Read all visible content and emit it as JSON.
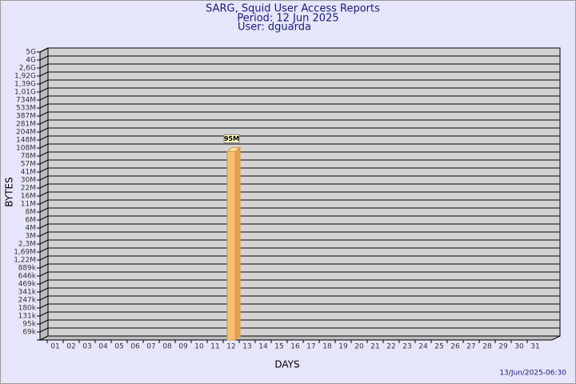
{
  "chart_data": {
    "type": "bar",
    "title": "SARG, Squid User Access Reports",
    "subtitle": "Period: 12 Jun 2025",
    "user": "User: dguarda",
    "x_label": "DAYS",
    "y_label": "BYTES",
    "footer": "13/Jun/2025-06:30",
    "categories": [
      "01",
      "02",
      "03",
      "04",
      "05",
      "06",
      "07",
      "08",
      "09",
      "10",
      "11",
      "12",
      "13",
      "14",
      "15",
      "16",
      "17",
      "18",
      "19",
      "20",
      "21",
      "22",
      "23",
      "24",
      "25",
      "26",
      "27",
      "28",
      "29",
      "30",
      "31"
    ],
    "values": [
      null,
      null,
      null,
      null,
      null,
      null,
      null,
      null,
      null,
      null,
      null,
      95000000,
      null,
      null,
      null,
      null,
      null,
      null,
      null,
      null,
      null,
      null,
      null,
      null,
      null,
      null,
      null,
      null,
      null,
      null,
      null
    ],
    "value_labels": [
      null,
      null,
      null,
      null,
      null,
      null,
      null,
      null,
      null,
      null,
      null,
      "95M",
      null,
      null,
      null,
      null,
      null,
      null,
      null,
      null,
      null,
      null,
      null,
      null,
      null,
      null,
      null,
      null,
      null,
      null,
      null
    ],
    "color": "#f8c070",
    "ylim": [
      50000,
      5000000000
    ],
    "yticks": [
      {
        "value": 69000,
        "label": "69k"
      },
      {
        "value": 95000,
        "label": "95k"
      },
      {
        "value": 131000,
        "label": "131k"
      },
      {
        "value": 180000,
        "label": "180k"
      },
      {
        "value": 247000,
        "label": "247k"
      },
      {
        "value": 341000,
        "label": "341k"
      },
      {
        "value": 469000,
        "label": "469k"
      },
      {
        "value": 646000,
        "label": "646k"
      },
      {
        "value": 889000,
        "label": "889k"
      },
      {
        "value": 1220000,
        "label": "1,22M"
      },
      {
        "value": 1690000,
        "label": "1,69M"
      },
      {
        "value": 2300000,
        "label": "2,3M"
      },
      {
        "value": 3000000,
        "label": "3M"
      },
      {
        "value": 4000000,
        "label": "4M"
      },
      {
        "value": 6000000,
        "label": "6M"
      },
      {
        "value": 8000000,
        "label": "8M"
      },
      {
        "value": 11000000,
        "label": "11M"
      },
      {
        "value": 16000000,
        "label": "16M"
      },
      {
        "value": 22000000,
        "label": "22M"
      },
      {
        "value": 30000000,
        "label": "30M"
      },
      {
        "value": 41000000,
        "label": "41M"
      },
      {
        "value": 57000000,
        "label": "57M"
      },
      {
        "value": 78000000,
        "label": "78M"
      },
      {
        "value": 108000000,
        "label": "108M"
      },
      {
        "value": 148000000,
        "label": "148M"
      },
      {
        "value": 204000000,
        "label": "204M"
      },
      {
        "value": 281000000,
        "label": "281M"
      },
      {
        "value": 387000000,
        "label": "387M"
      },
      {
        "value": 533000000,
        "label": "533M"
      },
      {
        "value": 734000000,
        "label": "734M"
      },
      {
        "value": 1010000000,
        "label": "1,01G"
      },
      {
        "value": 1390000000,
        "label": "1,39G"
      },
      {
        "value": 1920000000,
        "label": "1,92G"
      },
      {
        "value": 2600000000,
        "label": "2,6G"
      },
      {
        "value": 4000000000,
        "label": "4G"
      },
      {
        "value": 5000000000,
        "label": "5G"
      }
    ],
    "grid": true
  }
}
